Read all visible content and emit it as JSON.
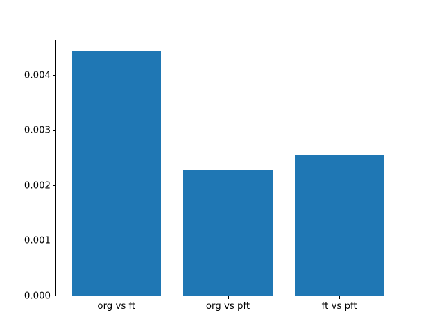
{
  "figure": {
    "background": "#ffffff",
    "spine_color": "#000000",
    "tick_color": "#000000",
    "text_color": "#000000"
  },
  "chart_data": {
    "type": "bar",
    "title": "",
    "xlabel": "",
    "ylabel": "",
    "categories": [
      "org vs ft",
      "org vs pft",
      "ft vs pft"
    ],
    "values": [
      0.00443,
      0.00228,
      0.00255
    ],
    "bar_color": "#1f77b4",
    "bar_width": 0.8,
    "xlim": [
      -0.54,
      2.54
    ],
    "ylim": [
      0,
      0.00463
    ],
    "yticks": [
      0,
      0.001,
      0.002,
      0.003,
      0.004
    ],
    "ytick_labels": [
      "0.000",
      "0.001",
      "0.002",
      "0.003",
      "0.004"
    ],
    "grid": false,
    "legend": null
  }
}
